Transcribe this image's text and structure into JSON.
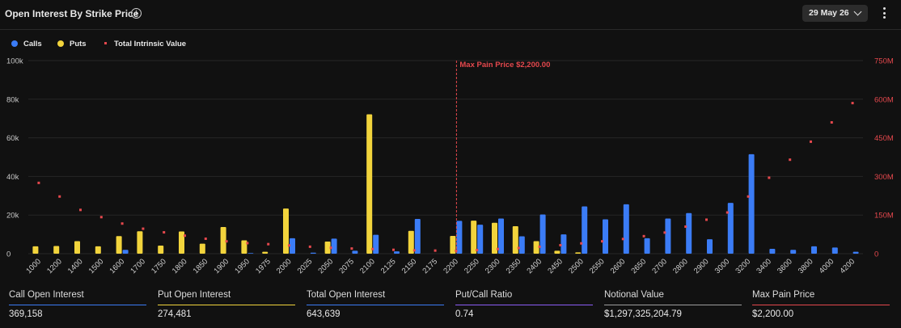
{
  "header": {
    "title": "Open Interest By Strike Price",
    "info_icon": "info-icon",
    "date_selected": "29 May 26",
    "date_icon": "chevron-down-icon",
    "menu_icon": "more-vertical-icon"
  },
  "legend": {
    "calls": "Calls",
    "puts": "Puts",
    "tiv": "Total Intrinsic Value"
  },
  "colors": {
    "calls": "#3b7cf6",
    "puts": "#f2d43c",
    "tiv": "#e5484d",
    "max_pain": "#e5484d",
    "put_call_ratio": "#8b5cf6",
    "notional": "#9e9e9e"
  },
  "chart_data": {
    "type": "bar",
    "categories": [
      "1000",
      "1200",
      "1400",
      "1500",
      "1600",
      "1700",
      "1750",
      "1800",
      "1850",
      "1900",
      "1950",
      "1975",
      "2000",
      "2025",
      "2050",
      "2075",
      "2100",
      "2125",
      "2150",
      "2175",
      "2200",
      "2250",
      "2300",
      "2350",
      "2400",
      "2450",
      "2500",
      "2550",
      "2600",
      "2650",
      "2700",
      "2800",
      "2900",
      "3000",
      "3200",
      "3400",
      "3600",
      "3800",
      "4000",
      "4200"
    ],
    "series": [
      {
        "name": "Calls",
        "axis": "left",
        "values": [
          0,
          0,
          0,
          0,
          2000,
          0,
          0,
          0,
          0,
          0,
          300,
          0,
          8000,
          500,
          7800,
          1500,
          9800,
          1200,
          18000,
          0,
          17000,
          15000,
          18200,
          9000,
          20300,
          10000,
          24500,
          17800,
          25600,
          8000,
          18200,
          21000,
          7500,
          26300,
          51500,
          2500,
          2000,
          3800,
          3200,
          1000
        ]
      },
      {
        "name": "Puts",
        "axis": "left",
        "values": [
          3800,
          4000,
          6500,
          3800,
          9100,
          11600,
          4200,
          11500,
          5200,
          13800,
          6900,
          1000,
          23400,
          0,
          6300,
          0,
          72200,
          0,
          11800,
          0,
          9200,
          17100,
          16000,
          14200,
          6500,
          1500,
          700,
          0,
          0,
          0,
          0,
          0,
          0,
          0,
          0,
          0,
          0,
          0,
          0,
          0
        ]
      },
      {
        "name": "Total Intrinsic Value",
        "axis": "right",
        "type": "scatter",
        "values": [
          275000000,
          222000000,
          170000000,
          142000000,
          117000000,
          97000000,
          83000000,
          70000000,
          58000000,
          48000000,
          41000000,
          37000000,
          32000000,
          27000000,
          23000000,
          20000000,
          18000000,
          15000000,
          13000000,
          12000000,
          11500000,
          14000000,
          18000000,
          22000000,
          27000000,
          33000000,
          40000000,
          48000000,
          57000000,
          68000000,
          82000000,
          105000000,
          132000000,
          160000000,
          222000000,
          295000000,
          365000000,
          435000000,
          510000000,
          585000000
        ]
      }
    ],
    "annotations": [
      {
        "text": "Max Pain Price $2,200.00",
        "x": "2200"
      }
    ],
    "yticks_left": [
      "0",
      "20k",
      "40k",
      "60k",
      "80k",
      "100k"
    ],
    "yticks_right": [
      "0",
      "150M",
      "300M",
      "450M",
      "600M",
      "750M"
    ],
    "ylim_left": [
      0,
      100000
    ],
    "ylim_right": [
      0,
      750000000
    ],
    "grid": true,
    "legend_position": "top-left"
  },
  "stats": [
    {
      "label": "Call Open Interest",
      "value": "369,158",
      "color": "#3b7cf6"
    },
    {
      "label": "Put Open Interest",
      "value": "274,481",
      "color": "#f2d43c"
    },
    {
      "label": "Total Open Interest",
      "value": "643,639",
      "color": "#3b7cf6"
    },
    {
      "label": "Put/Call Ratio",
      "value": "0.74",
      "color": "#8b5cf6"
    },
    {
      "label": "Notional Value",
      "value": "$1,297,325,204.79",
      "color": "#9e9e9e"
    },
    {
      "label": "Max Pain Price",
      "value": "$2,200.00",
      "color": "#e5484d"
    }
  ]
}
